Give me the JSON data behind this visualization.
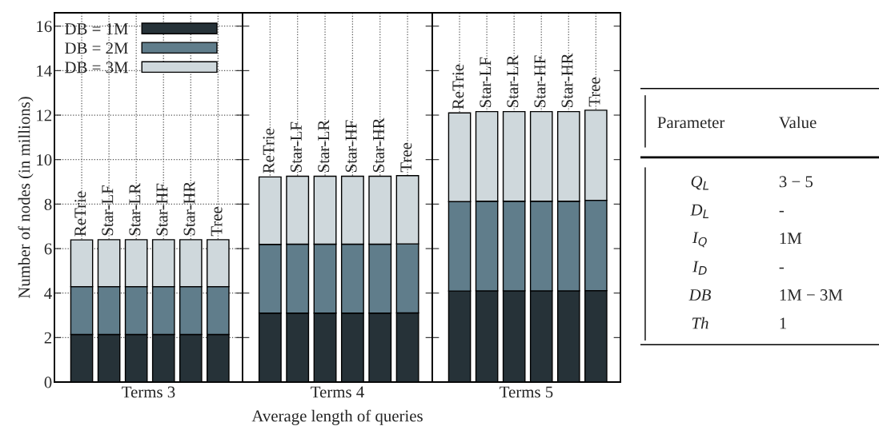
{
  "chart_data": [
    {
      "type": "bar",
      "stacked": true,
      "xlabel": "Terms 3",
      "ylabel": "Number of nodes (in millions)",
      "categories": [
        "ReTrie",
        "Star-LF",
        "Star-LR",
        "Star-HF",
        "Star-HR",
        "Tree"
      ],
      "ylim": [
        0,
        16.6
      ],
      "yticks": [
        0,
        2,
        4,
        6,
        8,
        10,
        12,
        14,
        16
      ],
      "grid": true,
      "legend": "top left",
      "series": [
        {
          "name": "DB = 1M",
          "color": "#263238",
          "values": [
            2.14,
            2.14,
            2.14,
            2.14,
            2.14,
            2.14
          ]
        },
        {
          "name": "DB = 2M",
          "color": "#607d8b",
          "values": [
            2.15,
            2.15,
            2.15,
            2.15,
            2.15,
            2.15
          ]
        },
        {
          "name": "DB = 3M",
          "color": "#cfd8dc",
          "values": [
            2.1,
            2.11,
            2.11,
            2.11,
            2.11,
            2.11
          ]
        }
      ]
    },
    {
      "type": "bar",
      "stacked": true,
      "xlabel": "Terms 4",
      "categories": [
        "ReTrie",
        "Star-LF",
        "Star-LR",
        "Star-HF",
        "Star-HR",
        "Tree"
      ],
      "ylim": [
        0,
        16.6
      ],
      "yticks": [
        0,
        2,
        4,
        6,
        8,
        10,
        12,
        14,
        16
      ],
      "tick_labels": "x",
      "grid": "x",
      "annotations": [
        "Average length of queries"
      ],
      "series": [
        {
          "color": "#263238",
          "values": [
            3.1,
            3.1,
            3.1,
            3.1,
            3.1,
            3.11
          ]
        },
        {
          "color": "#607d8b",
          "values": [
            3.09,
            3.1,
            3.1,
            3.1,
            3.1,
            3.1
          ]
        },
        {
          "color": "#cfd8dc",
          "values": [
            3.03,
            3.05,
            3.05,
            3.05,
            3.05,
            3.07
          ]
        }
      ]
    },
    {
      "type": "bar",
      "stacked": true,
      "xlabel": "Terms 5",
      "categories": [
        "ReTrie",
        "Star-LF",
        "Star-LR",
        "Star-HF",
        "Star-HR",
        "Tree"
      ],
      "ylim": [
        0,
        16.6
      ],
      "yticks": [
        0,
        2,
        4,
        6,
        8,
        10,
        12,
        14,
        16
      ],
      "tick_labels": "x",
      "grid": "x",
      "series": [
        {
          "color": "#263238",
          "values": [
            4.09,
            4.1,
            4.1,
            4.1,
            4.1,
            4.11
          ]
        },
        {
          "color": "#607d8b",
          "values": [
            4.02,
            4.03,
            4.03,
            4.03,
            4.03,
            4.06
          ]
        },
        {
          "color": "#cfd8dc",
          "values": [
            3.99,
            4.03,
            4.03,
            4.03,
            4.03,
            4.05
          ]
        }
      ]
    },
    {
      "type": "other",
      "categories": [
        "Parameter",
        "Value"
      ],
      "cell_labels": [
        [
          "Q$_{L}$",
          "3 − 5"
        ],
        [
          "D$_{L}$",
          "-"
        ],
        [
          "I$_{Q}$",
          "1M"
        ],
        [
          "I$_{D}$",
          "-"
        ],
        [
          "DB",
          "1M − 3M"
        ],
        [
          "Th",
          "1"
        ]
      ]
    }
  ]
}
